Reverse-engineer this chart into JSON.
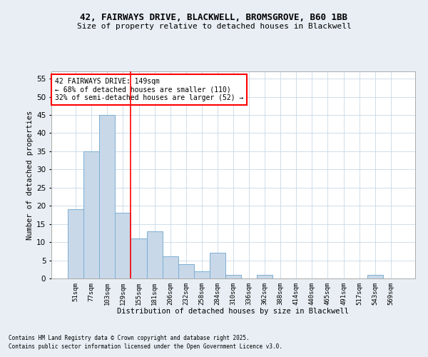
{
  "title1": "42, FAIRWAYS DRIVE, BLACKWELL, BROMSGROVE, B60 1BB",
  "title2": "Size of property relative to detached houses in Blackwell",
  "xlabel": "Distribution of detached houses by size in Blackwell",
  "ylabel": "Number of detached properties",
  "categories": [
    "51sqm",
    "77sqm",
    "103sqm",
    "129sqm",
    "155sqm",
    "181sqm",
    "206sqm",
    "232sqm",
    "258sqm",
    "284sqm",
    "310sqm",
    "336sqm",
    "362sqm",
    "388sqm",
    "414sqm",
    "440sqm",
    "465sqm",
    "491sqm",
    "517sqm",
    "543sqm",
    "569sqm"
  ],
  "values": [
    19,
    35,
    45,
    18,
    11,
    13,
    6,
    4,
    2,
    7,
    1,
    0,
    1,
    0,
    0,
    0,
    0,
    0,
    0,
    1,
    0
  ],
  "bar_color": "#c8d8e8",
  "bar_edge_color": "#7bafd4",
  "vline_x": 3.5,
  "vline_color": "red",
  "ylim": [
    0,
    57
  ],
  "yticks": [
    0,
    5,
    10,
    15,
    20,
    25,
    30,
    35,
    40,
    45,
    50,
    55
  ],
  "annotation_text": "42 FAIRWAYS DRIVE: 149sqm\n← 68% of detached houses are smaller (110)\n32% of semi-detached houses are larger (52) →",
  "footer1": "Contains HM Land Registry data © Crown copyright and database right 2025.",
  "footer2": "Contains public sector information licensed under the Open Government Licence v3.0.",
  "bg_color": "#e8eef4",
  "plot_bg_color": "#ffffff",
  "grid_color": "#c8d8e8"
}
